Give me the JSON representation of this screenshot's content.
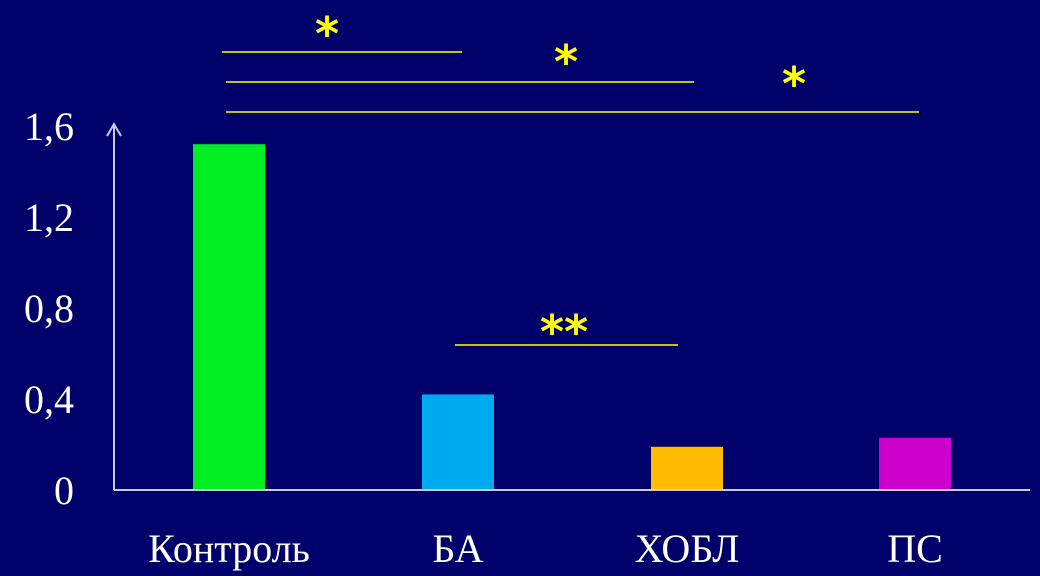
{
  "colors": {
    "background": "#00006a",
    "axis": "#c8c8e8",
    "text": "#ffffff",
    "significance": "#ffff00"
  },
  "chart_data": {
    "type": "bar",
    "title": "",
    "xlabel": "",
    "ylabel": "",
    "categories": [
      "Контроль",
      "БА",
      "ХОБЛ",
      "ПС"
    ],
    "values": [
      1.52,
      0.42,
      0.19,
      0.23
    ],
    "bar_colors": [
      "#00ee22",
      "#00aaee",
      "#ffbb00",
      "#cc00cc"
    ],
    "ylim": [
      0,
      1.6
    ],
    "yticks": [
      "0",
      "0,4",
      "0,8",
      "1,2",
      "1,6"
    ],
    "ytick_values": [
      0,
      0.4,
      0.8,
      1.2,
      1.6
    ],
    "grid": false,
    "legend": "none",
    "significance": [
      {
        "from": "Контроль",
        "to": "БА",
        "label": "*"
      },
      {
        "from": "Контроль",
        "to": "ХОБЛ",
        "label": "*"
      },
      {
        "from": "Контроль",
        "to": "ПС",
        "label": "*"
      },
      {
        "from": "БА",
        "to": "ХОБЛ",
        "label": "**"
      }
    ]
  }
}
